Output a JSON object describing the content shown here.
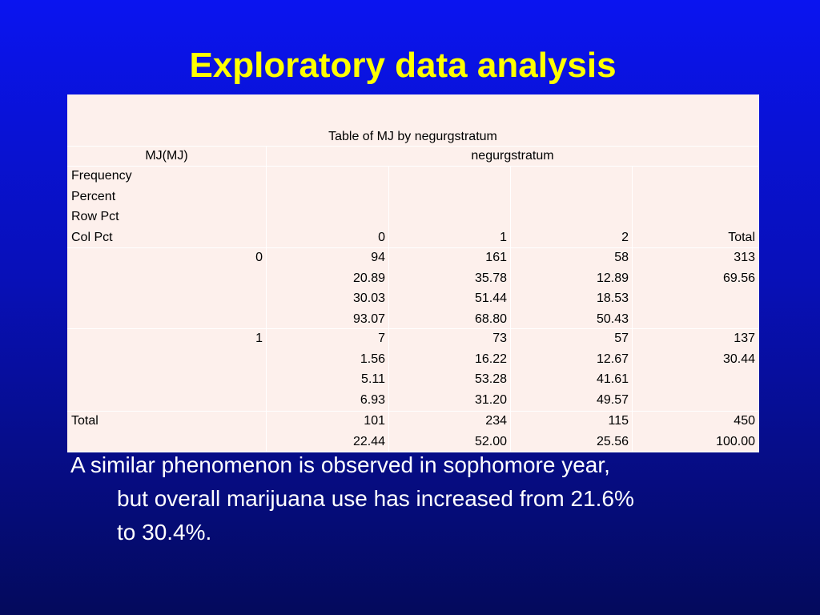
{
  "title": "Exploratory data analysis",
  "table": {
    "caption": "Table of MJ by negurgstratum",
    "row_variable": "MJ(MJ)",
    "column_variable": "negurgstratum",
    "statistics": [
      "Frequency",
      "Percent",
      "Row Pct",
      "Col Pct"
    ],
    "columns": [
      "0",
      "1",
      "2",
      "Total"
    ],
    "rows": [
      {
        "label": "0",
        "cells": [
          [
            "94",
            "20.89",
            "30.03",
            "93.07"
          ],
          [
            "161",
            "35.78",
            "51.44",
            "68.80"
          ],
          [
            "58",
            "12.89",
            "18.53",
            "50.43"
          ],
          [
            "313",
            "69.56"
          ]
        ]
      },
      {
        "label": "1",
        "cells": [
          [
            "7",
            "1.56",
            "5.11",
            "6.93"
          ],
          [
            "73",
            "16.22",
            "53.28",
            "31.20"
          ],
          [
            "57",
            "12.67",
            "41.61",
            "49.57"
          ],
          [
            "137",
            "30.44"
          ]
        ]
      },
      {
        "label": "Total",
        "cells": [
          [
            "101",
            "22.44"
          ],
          [
            "234",
            "52.00"
          ],
          [
            "115",
            "25.56"
          ],
          [
            "450",
            "100.00"
          ]
        ]
      }
    ]
  },
  "body": {
    "lines": [
      "A similar phenomenon is observed in sophomore year,",
      "but overall marijuana use has increased from 21.6%",
      "to 30.4%."
    ]
  }
}
